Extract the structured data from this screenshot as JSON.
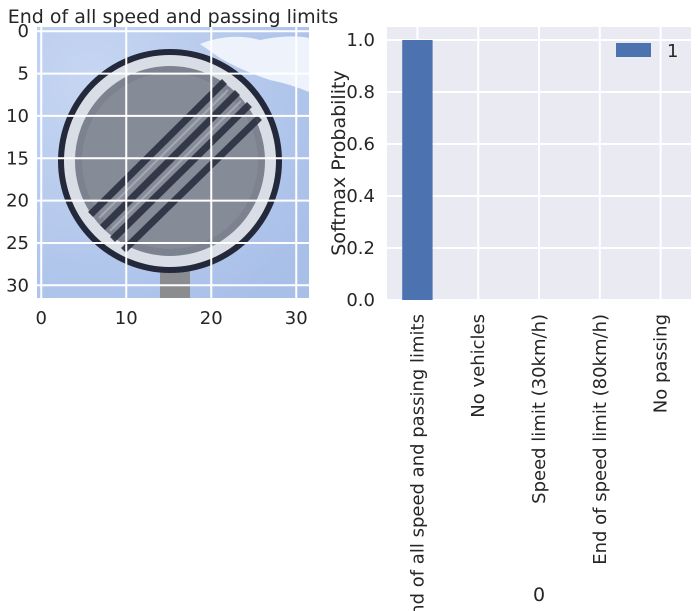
{
  "chart_data": [
    {
      "type": "image",
      "title": "End of all speed and passing limits",
      "image_description": "32x32 pixelated photo of a circular grey road sign with black diagonal stripes against a blue sky",
      "xticks": [
        "0",
        "10",
        "20",
        "30"
      ],
      "yticks": [
        "0",
        "5",
        "10",
        "15",
        "20",
        "25",
        "30"
      ],
      "xlim": [
        -0.5,
        31.5
      ],
      "ylim": [
        31.5,
        -0.5
      ],
      "grid": true
    },
    {
      "type": "bar",
      "title": "",
      "xlabel": "0",
      "ylabel": "Softmax Probability",
      "categories": [
        "End of all speed and passing limits",
        "No vehicles",
        "Speed limit (30km/h)",
        "End of speed limit (80km/h)",
        "No passing"
      ],
      "series": [
        {
          "name": "1",
          "values": [
            1.0,
            0.0,
            0.0,
            0.0,
            0.0
          ],
          "color": "#4C72B0"
        }
      ],
      "ylim": [
        0,
        1.05
      ],
      "yticks": [
        "0.0",
        "0.2",
        "0.4",
        "0.6",
        "0.8",
        "1.0"
      ],
      "legend": "top-right",
      "grid": true,
      "background": "#EAEAF2"
    }
  ]
}
